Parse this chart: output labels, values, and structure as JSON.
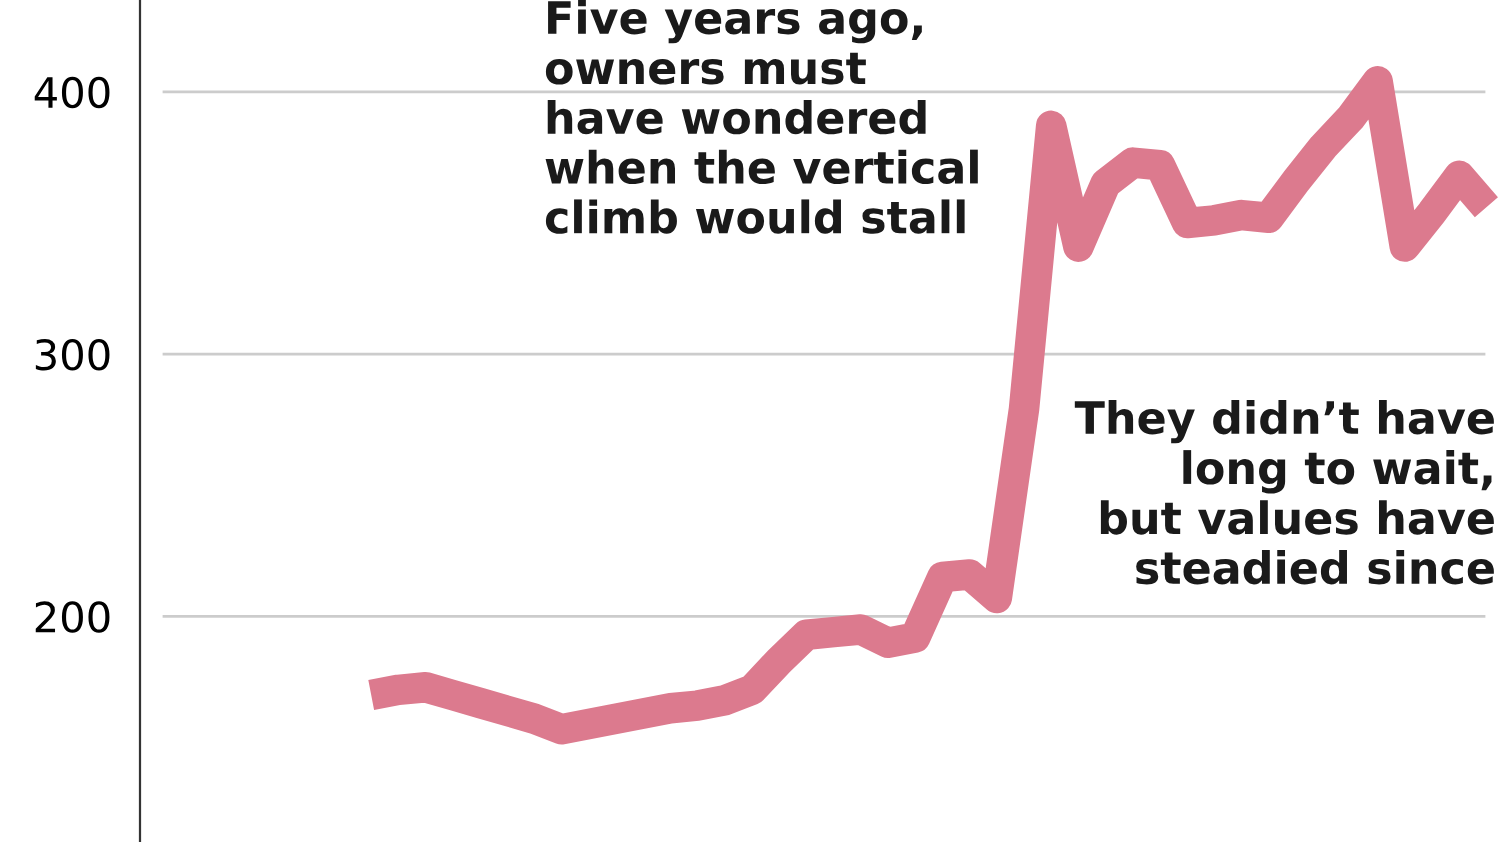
{
  "chart_data": {
    "type": "line",
    "categories": [
      null,
      null,
      null,
      null,
      null,
      null,
      null,
      null,
      null,
      null,
      null,
      null,
      null,
      null,
      null,
      null,
      null,
      null,
      null,
      null,
      null,
      null,
      null,
      null,
      null,
      null,
      null,
      null,
      null,
      null,
      null,
      null,
      null,
      null,
      null,
      null,
      null,
      null,
      null,
      null,
      null,
      null,
      null,
      null,
      null,
      null,
      null,
      null,
      null,
      null
    ],
    "series": [
      {
        "color": "#dc7a8e",
        "values": [
          null,
          null,
          null,
          null,
          null,
          null,
          null,
          null,
          170,
          172,
          173,
          170,
          167,
          164,
          161,
          157,
          159,
          161,
          163,
          165,
          166,
          168,
          172,
          183,
          193,
          194,
          195,
          190,
          192,
          215,
          216,
          207,
          279,
          387,
          341,
          365,
          373,
          372,
          350,
          351,
          353,
          352,
          366,
          379,
          390,
          404,
          341,
          354,
          368,
          356
        ]
      }
    ],
    "ylim": [
      114,
      435
    ],
    "yticks": [
      200,
      300,
      400
    ],
    "grid": "y",
    "tick_labels": "y",
    "marker": "none",
    "line_style": "solid",
    "annotations": [
      "Five years ago,\nowners must\nhave wondered\nwhen the vertical\nclimb would stall",
      "They didn’t have\nlong to wait,\nbut values have\nsteadied since"
    ]
  }
}
